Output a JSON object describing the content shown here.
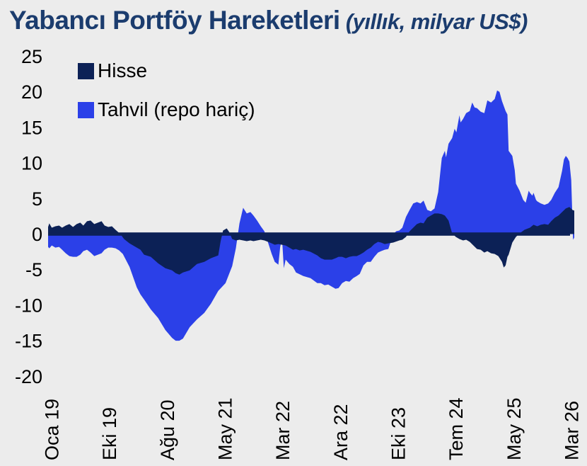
{
  "title": {
    "main": "Yabancı Portföy Hareketleri",
    "suffix": " (yıllık, milyar US$)",
    "color": "#1B3C6E"
  },
  "legend": {
    "items": [
      {
        "label": "Hisse",
        "color": "#0C2156"
      },
      {
        "label": "Tahvil (repo hariç)",
        "color": "#2B40E8"
      }
    ]
  },
  "colors": {
    "background": "#ECECEC",
    "hisse": "#0C2156",
    "tahvil": "#2B40E8",
    "zero_line": "#0C2156",
    "axis_text": "#000000"
  },
  "chart_data": {
    "type": "area",
    "title": "Yabancı Portföy Hareketleri",
    "subtitle": "yıllık, milyar US$",
    "xlabel": "",
    "ylabel": "milyar US$",
    "legend_position": "top-left",
    "grid": false,
    "y_axis": {
      "min": -20,
      "max": 25,
      "step": 5,
      "ticks": [
        "25",
        "20",
        "15",
        "10",
        "5",
        "0",
        "-5",
        "-10",
        "-15",
        "-20"
      ]
    },
    "x_axis": {
      "unit": "months since Oca 2019",
      "domain": [
        0,
        86.6
      ],
      "tick_labels": [
        "Oca 19",
        "Eki 19",
        "Ağu 20",
        "May 21",
        "Mar 22",
        "Ara 22",
        "Eki 23",
        "Tem 24",
        "May 25",
        "Mar 26"
      ]
    },
    "series": [
      {
        "name": "Hisse",
        "color": "#0C2156",
        "points": [
          [
            0,
            1.0
          ],
          [
            0.2,
            1.5
          ],
          [
            0.6,
            0.9
          ],
          [
            1.2,
            1.1
          ],
          [
            1.8,
            1.2
          ],
          [
            2.3,
            0.9
          ],
          [
            2.9,
            1.2
          ],
          [
            3.5,
            1.4
          ],
          [
            4.1,
            1.0
          ],
          [
            4.7,
            1.4
          ],
          [
            5.3,
            1.6
          ],
          [
            5.8,
            1.2
          ],
          [
            6.4,
            1.8
          ],
          [
            7.0,
            1.9
          ],
          [
            7.6,
            1.4
          ],
          [
            8.2,
            1.6
          ],
          [
            8.8,
            1.8
          ],
          [
            9.3,
            1.2
          ],
          [
            9.9,
            1.0
          ],
          [
            10.5,
            1.1
          ],
          [
            11.1,
            0.6
          ],
          [
            11.9,
            0.0
          ],
          [
            12.5,
            -0.7
          ],
          [
            13.4,
            -1.3
          ],
          [
            14.6,
            -1.9
          ],
          [
            15.2,
            -2.2
          ],
          [
            15.8,
            -2.9
          ],
          [
            16.9,
            -3.2
          ],
          [
            18.1,
            -4.1
          ],
          [
            19.3,
            -4.8
          ],
          [
            20.4,
            -5.1
          ],
          [
            21.0,
            -5.5
          ],
          [
            21.6,
            -5.7
          ],
          [
            22.2,
            -5.4
          ],
          [
            23.3,
            -5.1
          ],
          [
            24.5,
            -4.2
          ],
          [
            25.7,
            -3.9
          ],
          [
            26.8,
            -3.4
          ],
          [
            28.0,
            -3.0
          ],
          [
            28.4,
            -1.0
          ],
          [
            28.8,
            0.5
          ],
          [
            29.4,
            0.8
          ],
          [
            29.8,
            0.3
          ],
          [
            30.3,
            -0.7
          ],
          [
            30.9,
            -0.9
          ],
          [
            31.5,
            -0.8
          ],
          [
            32.1,
            -0.9
          ],
          [
            32.7,
            -1.0
          ],
          [
            33.3,
            -0.9
          ],
          [
            33.8,
            -1.0
          ],
          [
            34.4,
            -0.9
          ],
          [
            35.0,
            -0.8
          ],
          [
            35.6,
            -0.9
          ],
          [
            36.2,
            -1.1
          ],
          [
            36.8,
            -1.3
          ],
          [
            37.3,
            -1.5
          ],
          [
            37.9,
            -1.4
          ],
          [
            38.5,
            -1.5
          ],
          [
            39.1,
            -1.6
          ],
          [
            39.7,
            -1.9
          ],
          [
            40.3,
            -2.2
          ],
          [
            40.8,
            -2.1
          ],
          [
            41.4,
            -2.3
          ],
          [
            42.0,
            -2.2
          ],
          [
            43.2,
            -2.5
          ],
          [
            44.3,
            -3.0
          ],
          [
            44.9,
            -3.4
          ],
          [
            45.5,
            -3.6
          ],
          [
            46.1,
            -3.6
          ],
          [
            46.7,
            -3.6
          ],
          [
            47.3,
            -3.4
          ],
          [
            47.8,
            -3.2
          ],
          [
            48.4,
            -3.2
          ],
          [
            49.0,
            -3.4
          ],
          [
            49.6,
            -3.2
          ],
          [
            50.2,
            -3.1
          ],
          [
            50.8,
            -3.1
          ],
          [
            51.3,
            -2.9
          ],
          [
            51.9,
            -2.6
          ],
          [
            52.5,
            -2.2
          ],
          [
            53.1,
            -1.9
          ],
          [
            53.7,
            -1.4
          ],
          [
            54.3,
            -1.1
          ],
          [
            54.8,
            -1.2
          ],
          [
            55.4,
            -1.4
          ],
          [
            56.0,
            -1.3
          ],
          [
            56.8,
            -1.2
          ],
          [
            57.8,
            -0.9
          ],
          [
            58.3,
            -0.8
          ],
          [
            58.9,
            -0.4
          ],
          [
            59.5,
            0.4
          ],
          [
            60.1,
            0.9
          ],
          [
            60.7,
            1.4
          ],
          [
            61.3,
            1.6
          ],
          [
            61.8,
            1.5
          ],
          [
            62.4,
            2.3
          ],
          [
            63.0,
            2.6
          ],
          [
            63.6,
            2.9
          ],
          [
            64.2,
            2.9
          ],
          [
            64.8,
            2.8
          ],
          [
            65.3,
            2.6
          ],
          [
            65.9,
            1.9
          ],
          [
            66.5,
            0.1
          ],
          [
            67.1,
            -0.4
          ],
          [
            67.7,
            -0.7
          ],
          [
            68.3,
            -0.9
          ],
          [
            68.8,
            -0.8
          ],
          [
            69.4,
            -1.1
          ],
          [
            70.0,
            -1.6
          ],
          [
            70.6,
            -2.1
          ],
          [
            71.2,
            -2.2
          ],
          [
            71.8,
            -2.6
          ],
          [
            72.3,
            -2.4
          ],
          [
            72.9,
            -2.7
          ],
          [
            73.5,
            -2.8
          ],
          [
            74.1,
            -3.1
          ],
          [
            74.7,
            -3.9
          ],
          [
            75.0,
            -4.7
          ],
          [
            75.3,
            -4.4
          ],
          [
            75.6,
            -3.2
          ],
          [
            75.8,
            -2.9
          ],
          [
            76.4,
            -1.2
          ],
          [
            77.0,
            -0.4
          ],
          [
            77.6,
            0.1
          ],
          [
            78.4,
            0.6
          ],
          [
            79.3,
            0.9
          ],
          [
            79.9,
            1.3
          ],
          [
            80.5,
            1.1
          ],
          [
            81.1,
            1.3
          ],
          [
            81.7,
            1.4
          ],
          [
            82.3,
            1.3
          ],
          [
            82.8,
            1.8
          ],
          [
            83.4,
            2.3
          ],
          [
            84.0,
            2.6
          ],
          [
            84.6,
            3.1
          ],
          [
            85.2,
            3.6
          ],
          [
            85.8,
            3.8
          ],
          [
            86.3,
            3.4
          ],
          [
            86.6,
            3.3
          ]
        ]
      },
      {
        "name": "Tahvil (repo hariç)",
        "color": "#2B40E8",
        "points": [
          [
            0,
            -1.8
          ],
          [
            0.2,
            -2.0
          ],
          [
            0.6,
            -1.6
          ],
          [
            1.2,
            -1.9
          ],
          [
            1.8,
            -1.8
          ],
          [
            2.3,
            -2.2
          ],
          [
            2.9,
            -2.7
          ],
          [
            3.5,
            -3.1
          ],
          [
            4.1,
            -3.2
          ],
          [
            4.7,
            -3.2
          ],
          [
            5.3,
            -2.9
          ],
          [
            5.8,
            -2.4
          ],
          [
            6.4,
            -2.2
          ],
          [
            7.0,
            -2.6
          ],
          [
            7.6,
            -3.1
          ],
          [
            8.2,
            -2.9
          ],
          [
            8.8,
            -2.7
          ],
          [
            9.3,
            -2.2
          ],
          [
            9.9,
            -1.9
          ],
          [
            10.5,
            -1.9
          ],
          [
            11.1,
            -2.0
          ],
          [
            11.7,
            -2.3
          ],
          [
            12.3,
            -2.8
          ],
          [
            13.4,
            -4.6
          ],
          [
            14.6,
            -7.5
          ],
          [
            15.2,
            -8.5
          ],
          [
            15.8,
            -9.2
          ],
          [
            16.9,
            -10.6
          ],
          [
            18.1,
            -11.8
          ],
          [
            19.3,
            -13.5
          ],
          [
            20.4,
            -14.6
          ],
          [
            21.0,
            -15.0
          ],
          [
            21.6,
            -15.0
          ],
          [
            22.2,
            -14.7
          ],
          [
            23.3,
            -13.1
          ],
          [
            24.5,
            -12.0
          ],
          [
            25.7,
            -11.1
          ],
          [
            26.8,
            -9.8
          ],
          [
            28.0,
            -8.0
          ],
          [
            29.2,
            -6.9
          ],
          [
            30.3,
            -4.5
          ],
          [
            30.9,
            -2.0
          ],
          [
            31.5,
            1.5
          ],
          [
            32.1,
            3.7
          ],
          [
            32.7,
            2.9
          ],
          [
            33.3,
            3.1
          ],
          [
            33.8,
            2.6
          ],
          [
            34.4,
            1.9
          ],
          [
            35.0,
            1.1
          ],
          [
            35.6,
            0.4
          ],
          [
            36.2,
            -1.2
          ],
          [
            36.8,
            -2.8
          ],
          [
            37.3,
            -3.9
          ],
          [
            37.9,
            -4.3
          ],
          [
            38.2,
            -1.8
          ],
          [
            38.5,
            -0.6
          ],
          [
            38.8,
            -4.8
          ],
          [
            39.1,
            -3.6
          ],
          [
            39.7,
            -4.2
          ],
          [
            40.3,
            -4.6
          ],
          [
            40.8,
            -5.4
          ],
          [
            42.0,
            -5.9
          ],
          [
            43.2,
            -6.2
          ],
          [
            44.3,
            -6.9
          ],
          [
            44.9,
            -6.9
          ],
          [
            45.5,
            -7.2
          ],
          [
            46.1,
            -7.1
          ],
          [
            46.7,
            -7.4
          ],
          [
            47.3,
            -7.7
          ],
          [
            47.8,
            -7.6
          ],
          [
            48.4,
            -6.9
          ],
          [
            49.0,
            -6.6
          ],
          [
            49.6,
            -6.7
          ],
          [
            50.2,
            -6.2
          ],
          [
            50.8,
            -5.9
          ],
          [
            51.3,
            -5.6
          ],
          [
            51.9,
            -4.4
          ],
          [
            52.5,
            -3.9
          ],
          [
            53.1,
            -3.9
          ],
          [
            53.7,
            -3.2
          ],
          [
            54.3,
            -2.6
          ],
          [
            54.8,
            -2.4
          ],
          [
            55.4,
            -2.2
          ],
          [
            56.0,
            -2.1
          ],
          [
            56.8,
            0.0
          ],
          [
            57.3,
            0.4
          ],
          [
            57.8,
            0.5
          ],
          [
            58.3,
            0.9
          ],
          [
            58.9,
            2.4
          ],
          [
            59.5,
            3.4
          ],
          [
            60.1,
            4.3
          ],
          [
            60.7,
            4.5
          ],
          [
            61.3,
            4.3
          ],
          [
            61.8,
            4.7
          ],
          [
            62.4,
            3.4
          ],
          [
            63.0,
            3.2
          ],
          [
            63.6,
            3.6
          ],
          [
            64.2,
            5.9
          ],
          [
            64.8,
            10.7
          ],
          [
            65.3,
            11.7
          ],
          [
            65.5,
            10.8
          ],
          [
            65.9,
            12.7
          ],
          [
            66.5,
            13.5
          ],
          [
            66.9,
            14.8
          ],
          [
            67.2,
            14.3
          ],
          [
            67.7,
            16.7
          ],
          [
            67.9,
            15.7
          ],
          [
            68.3,
            16.2
          ],
          [
            68.8,
            17.0
          ],
          [
            69.4,
            17.3
          ],
          [
            69.8,
            18.5
          ],
          [
            70.2,
            17.8
          ],
          [
            70.6,
            17.7
          ],
          [
            71.2,
            17.2
          ],
          [
            71.8,
            17.0
          ],
          [
            72.3,
            18.8
          ],
          [
            72.9,
            18.5
          ],
          [
            73.5,
            19.0
          ],
          [
            73.9,
            20.2
          ],
          [
            74.3,
            20.0
          ],
          [
            74.7,
            18.7
          ],
          [
            75.3,
            17.3
          ],
          [
            75.6,
            16.8
          ],
          [
            75.8,
            11.7
          ],
          [
            76.4,
            11.0
          ],
          [
            76.8,
            9.0
          ],
          [
            77.0,
            7.1
          ],
          [
            77.6,
            6.1
          ],
          [
            78.2,
            4.8
          ],
          [
            78.6,
            4.4
          ],
          [
            79.1,
            6.1
          ],
          [
            79.3,
            5.8
          ],
          [
            79.7,
            5.4
          ],
          [
            79.9,
            5.8
          ],
          [
            80.3,
            4.8
          ],
          [
            80.5,
            4.6
          ],
          [
            81.1,
            4.3
          ],
          [
            81.7,
            4.1
          ],
          [
            82.3,
            4.3
          ],
          [
            82.8,
            4.8
          ],
          [
            83.4,
            5.8
          ],
          [
            84.0,
            6.6
          ],
          [
            84.6,
            8.9
          ],
          [
            84.9,
            10.5
          ],
          [
            85.2,
            11.0
          ],
          [
            85.5,
            10.7
          ],
          [
            85.8,
            10.2
          ],
          [
            86.1,
            7.6
          ],
          [
            86.4,
            -0.8
          ],
          [
            86.6,
            -0.5
          ]
        ]
      }
    ]
  }
}
